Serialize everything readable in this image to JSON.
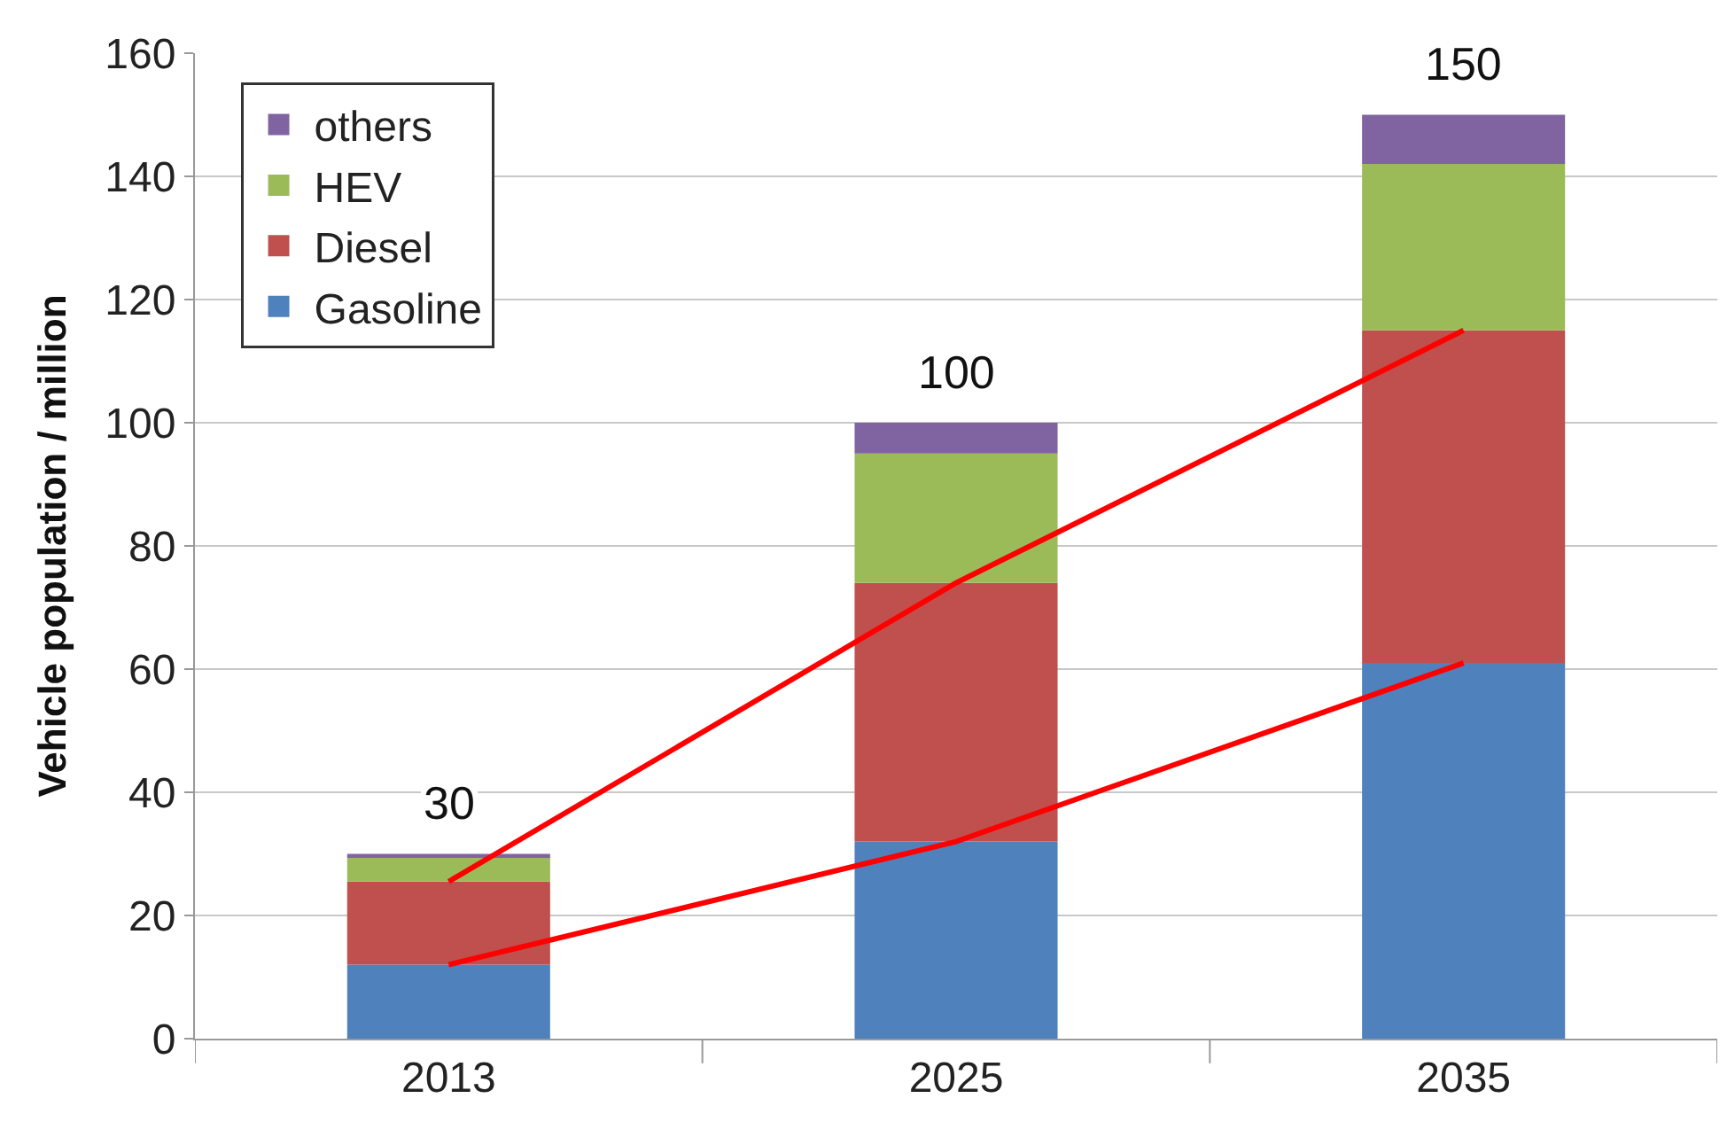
{
  "chart_data": {
    "type": "bar",
    "stacked": true,
    "ylabel": "Vehicle population / million",
    "categories": [
      "2013",
      "2025",
      "2035"
    ],
    "series": [
      {
        "name": "Gasoline",
        "color": "#4f81bd",
        "values": [
          12,
          32,
          61
        ]
      },
      {
        "name": "Diesel",
        "color": "#c0504d",
        "values": [
          13.5,
          42,
          54
        ]
      },
      {
        "name": "HEV",
        "color": "#9bbb59",
        "values": [
          4,
          21,
          27
        ]
      },
      {
        "name": "others",
        "color": "#8064a2",
        "values": [
          0.5,
          5,
          8
        ]
      },
      {
        "type": "line",
        "color": "#ff0000",
        "values": [
          12,
          32,
          61
        ]
      },
      {
        "type": "line",
        "color": "#ff0000",
        "values": [
          25.5,
          74,
          115
        ]
      }
    ],
    "totals": [
      "30",
      "100",
      "150"
    ],
    "ylim": [
      0,
      160
    ],
    "yticks": [
      0,
      20,
      40,
      60,
      80,
      100,
      120,
      140,
      160
    ],
    "grid": "y",
    "legend": "top left"
  }
}
